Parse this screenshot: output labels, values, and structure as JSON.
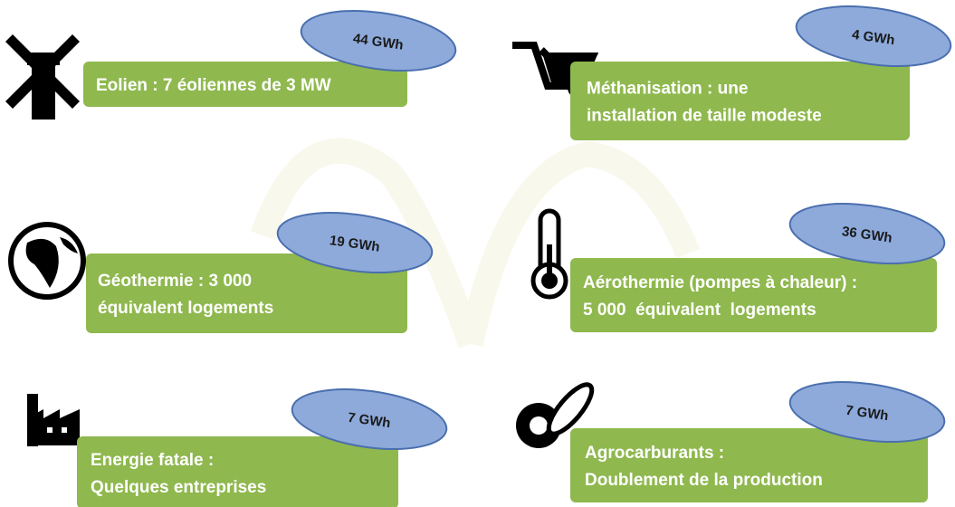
{
  "items": [
    {
      "label": [
        "Eolien : 7 éoliennes de 3 MW"
      ],
      "badge": "44 GWh"
    },
    {
      "label": [
        "Méthanisation : une",
        "installation de taille modeste"
      ],
      "badge": "4 GWh"
    },
    {
      "label": [
        "Géothermie : 3 000",
        "équivalent logements"
      ],
      "badge": "19 GWh"
    },
    {
      "label": [
        "Aérothermie (pompes à chaleur) :",
        "5 000  équivalent  logements"
      ],
      "badge": "36 GWh"
    },
    {
      "label": [
        "Energie fatale :",
        "Quelques entreprises"
      ],
      "badge": "7 GWh"
    },
    {
      "label": [
        "Agrocarburants :",
        "Doublement de la production"
      ],
      "badge": "7 GWh"
    }
  ]
}
